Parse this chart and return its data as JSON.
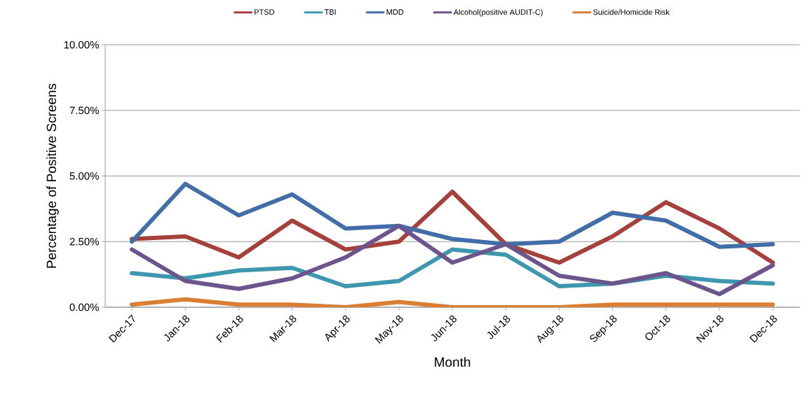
{
  "chart_data": {
    "type": "line",
    "xlabel": "Month",
    "ylabel": "Percentage of Positive Screens",
    "categories": [
      "Dec-17",
      "Jan-18",
      "Feb-18",
      "Mar-18",
      "Apr-18",
      "May-18",
      "Jun-18",
      "Jul-18",
      "Aug-18",
      "Sep-18",
      "Oct-18",
      "Nov-18",
      "Dec-18"
    ],
    "series": [
      {
        "name": "PTSD",
        "color": "#a5403d",
        "values": [
          2.6,
          2.7,
          1.9,
          3.3,
          2.2,
          2.5,
          4.4,
          2.4,
          1.7,
          2.7,
          4.0,
          3.0,
          1.7
        ]
      },
      {
        "name": "TBI",
        "color": "#3d97af",
        "values": [
          1.3,
          1.1,
          1.4,
          1.5,
          0.8,
          1.0,
          2.2,
          2.0,
          0.8,
          0.9,
          1.2,
          1.0,
          0.9
        ]
      },
      {
        "name": "MDD",
        "color": "#416ea8",
        "values": [
          2.5,
          4.7,
          3.5,
          4.3,
          3.0,
          3.1,
          2.6,
          2.4,
          2.5,
          3.6,
          3.3,
          2.3,
          2.4
        ]
      },
      {
        "name": "Alcohol(positive AUDIT-C)",
        "color": "#6c548d",
        "values": [
          2.2,
          1.0,
          0.7,
          1.1,
          1.9,
          3.1,
          1.7,
          2.4,
          1.2,
          0.9,
          1.3,
          0.5,
          1.6
        ]
      },
      {
        "name": "Suicide/Homicide Risk",
        "color": "#da7e34",
        "values": [
          0.1,
          0.3,
          0.1,
          0.1,
          0.0,
          0.2,
          0.0,
          0.0,
          0.0,
          0.1,
          0.1,
          0.1,
          0.1
        ]
      }
    ],
    "ylim": [
      0,
      10
    ],
    "yticks": [
      {
        "value": 0,
        "label": "0.00%"
      },
      {
        "value": 2.5,
        "label": "2.50%"
      },
      {
        "value": 5,
        "label": "5.00%"
      },
      {
        "value": 7.5,
        "label": "7.50%"
      },
      {
        "value": 10,
        "label": "10.00%"
      }
    ],
    "grid": "y",
    "legend": "top",
    "marker": "none",
    "line_style": "solid"
  }
}
